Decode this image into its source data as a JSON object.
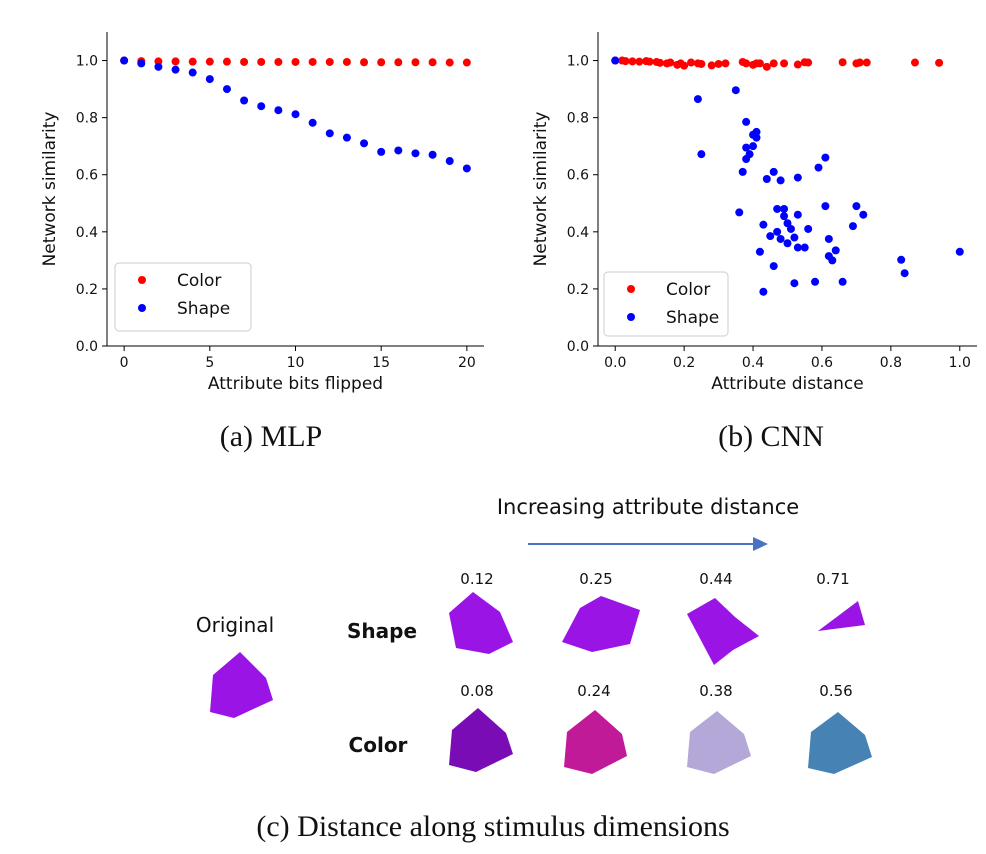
{
  "chart_data": [
    {
      "type": "scatter",
      "panel": "a",
      "caption": "(a) MLP",
      "xlabel": "Attribute bits flipped",
      "ylabel": "Network similarity",
      "xlim": [
        -1,
        21
      ],
      "ylim": [
        0.0,
        1.1
      ],
      "xticks": [
        0,
        5,
        10,
        15,
        20
      ],
      "yticks": [
        0.0,
        0.2,
        0.4,
        0.6,
        0.8,
        1.0
      ],
      "legend_loc": "lower-left",
      "series": [
        {
          "name": "Color",
          "color": "#ff0000",
          "points": [
            [
              0,
              1.0
            ],
            [
              1,
              0.998
            ],
            [
              2,
              0.997
            ],
            [
              3,
              0.997
            ],
            [
              4,
              0.996
            ],
            [
              5,
              0.996
            ],
            [
              6,
              0.996
            ],
            [
              7,
              0.995
            ],
            [
              8,
              0.995
            ],
            [
              9,
              0.995
            ],
            [
              10,
              0.995
            ],
            [
              11,
              0.995
            ],
            [
              12,
              0.995
            ],
            [
              13,
              0.995
            ],
            [
              14,
              0.994
            ],
            [
              15,
              0.994
            ],
            [
              16,
              0.994
            ],
            [
              17,
              0.994
            ],
            [
              18,
              0.994
            ],
            [
              19,
              0.993
            ],
            [
              20,
              0.993
            ]
          ]
        },
        {
          "name": "Shape",
          "color": "#0000ff",
          "points": [
            [
              0,
              1.0
            ],
            [
              1,
              0.99
            ],
            [
              2,
              0.978
            ],
            [
              3,
              0.968
            ],
            [
              4,
              0.958
            ],
            [
              5,
              0.935
            ],
            [
              6,
              0.9
            ],
            [
              7,
              0.86
            ],
            [
              8,
              0.84
            ],
            [
              9,
              0.826
            ],
            [
              10,
              0.812
            ],
            [
              11,
              0.782
            ],
            [
              12,
              0.745
            ],
            [
              13,
              0.73
            ],
            [
              14,
              0.71
            ],
            [
              15,
              0.68
            ],
            [
              16,
              0.685
            ],
            [
              17,
              0.675
            ],
            [
              18,
              0.67
            ],
            [
              19,
              0.648
            ],
            [
              20,
              0.622
            ]
          ]
        }
      ]
    },
    {
      "type": "scatter",
      "panel": "b",
      "caption": "(b) CNN",
      "xlabel": "Attribute distance",
      "ylabel": "Network similarity",
      "xlim": [
        -0.05,
        1.05
      ],
      "ylim": [
        0.0,
        1.1
      ],
      "xticks": [
        0.0,
        0.2,
        0.4,
        0.6,
        0.8,
        1.0
      ],
      "yticks": [
        0.0,
        0.2,
        0.4,
        0.6,
        0.8,
        1.0
      ],
      "legend_loc": "lower-left",
      "series": [
        {
          "name": "Color",
          "color": "#ff0000",
          "points": [
            [
              0.0,
              1.0
            ],
            [
              0.02,
              1.0
            ],
            [
              0.03,
              0.998
            ],
            [
              0.05,
              0.997
            ],
            [
              0.07,
              0.996
            ],
            [
              0.09,
              0.998
            ],
            [
              0.1,
              0.996
            ],
            [
              0.12,
              0.995
            ],
            [
              0.13,
              0.992
            ],
            [
              0.15,
              0.99
            ],
            [
              0.16,
              0.993
            ],
            [
              0.18,
              0.985
            ],
            [
              0.19,
              0.99
            ],
            [
              0.2,
              0.982
            ],
            [
              0.22,
              0.993
            ],
            [
              0.24,
              0.99
            ],
            [
              0.25,
              0.988
            ],
            [
              0.28,
              0.983
            ],
            [
              0.3,
              0.988
            ],
            [
              0.32,
              0.99
            ],
            [
              0.37,
              0.995
            ],
            [
              0.38,
              0.99
            ],
            [
              0.4,
              0.985
            ],
            [
              0.41,
              0.99
            ],
            [
              0.42,
              0.99
            ],
            [
              0.44,
              0.978
            ],
            [
              0.46,
              0.99
            ],
            [
              0.49,
              0.99
            ],
            [
              0.53,
              0.986
            ],
            [
              0.55,
              0.994
            ],
            [
              0.56,
              0.993
            ],
            [
              0.66,
              0.994
            ],
            [
              0.7,
              0.99
            ],
            [
              0.71,
              0.993
            ],
            [
              0.73,
              0.993
            ],
            [
              0.87,
              0.993
            ],
            [
              0.94,
              0.992
            ]
          ]
        },
        {
          "name": "Shape",
          "color": "#0000ff",
          "points": [
            [
              0.0,
              1.0
            ],
            [
              0.24,
              0.865
            ],
            [
              0.25,
              0.672
            ],
            [
              0.35,
              0.896
            ],
            [
              0.36,
              0.468
            ],
            [
              0.37,
              0.61
            ],
            [
              0.38,
              0.785
            ],
            [
              0.38,
              0.695
            ],
            [
              0.38,
              0.655
            ],
            [
              0.39,
              0.672
            ],
            [
              0.4,
              0.74
            ],
            [
              0.4,
              0.7
            ],
            [
              0.41,
              0.75
            ],
            [
              0.41,
              0.73
            ],
            [
              0.42,
              0.33
            ],
            [
              0.43,
              0.425
            ],
            [
              0.43,
              0.19
            ],
            [
              0.44,
              0.585
            ],
            [
              0.45,
              0.385
            ],
            [
              0.46,
              0.28
            ],
            [
              0.46,
              0.61
            ],
            [
              0.47,
              0.48
            ],
            [
              0.47,
              0.4
            ],
            [
              0.48,
              0.375
            ],
            [
              0.48,
              0.58
            ],
            [
              0.49,
              0.48
            ],
            [
              0.49,
              0.455
            ],
            [
              0.5,
              0.36
            ],
            [
              0.5,
              0.43
            ],
            [
              0.51,
              0.41
            ],
            [
              0.52,
              0.22
            ],
            [
              0.52,
              0.38
            ],
            [
              0.53,
              0.46
            ],
            [
              0.53,
              0.345
            ],
            [
              0.53,
              0.59
            ],
            [
              0.55,
              0.345
            ],
            [
              0.56,
              0.41
            ],
            [
              0.58,
              0.225
            ],
            [
              0.59,
              0.625
            ],
            [
              0.61,
              0.66
            ],
            [
              0.61,
              0.49
            ],
            [
              0.62,
              0.375
            ],
            [
              0.62,
              0.315
            ],
            [
              0.63,
              0.3
            ],
            [
              0.64,
              0.335
            ],
            [
              0.66,
              0.225
            ],
            [
              0.69,
              0.42
            ],
            [
              0.7,
              0.49
            ],
            [
              0.72,
              0.46
            ],
            [
              0.83,
              0.302
            ],
            [
              0.84,
              0.255
            ],
            [
              1.0,
              0.33
            ]
          ]
        }
      ]
    }
  ],
  "stimuli": {
    "caption": "(c) Distance along stimulus dimensions",
    "arrow_label": "Increasing attribute distance",
    "original_label": "Original",
    "original_color": "#9b14e6",
    "rows": [
      {
        "label": "Shape",
        "items": [
          {
            "value": "0.12",
            "color": "#9b14e6"
          },
          {
            "value": "0.25",
            "color": "#9b14e6"
          },
          {
            "value": "0.44",
            "color": "#9b14e6"
          },
          {
            "value": "0.71",
            "color": "#9b14e6"
          }
        ]
      },
      {
        "label": "Color",
        "items": [
          {
            "value": "0.08",
            "color": "#7a0cb5"
          },
          {
            "value": "0.24",
            "color": "#c01a99"
          },
          {
            "value": "0.38",
            "color": "#b3a8d8"
          },
          {
            "value": "0.56",
            "color": "#4682b4"
          }
        ]
      }
    ]
  }
}
